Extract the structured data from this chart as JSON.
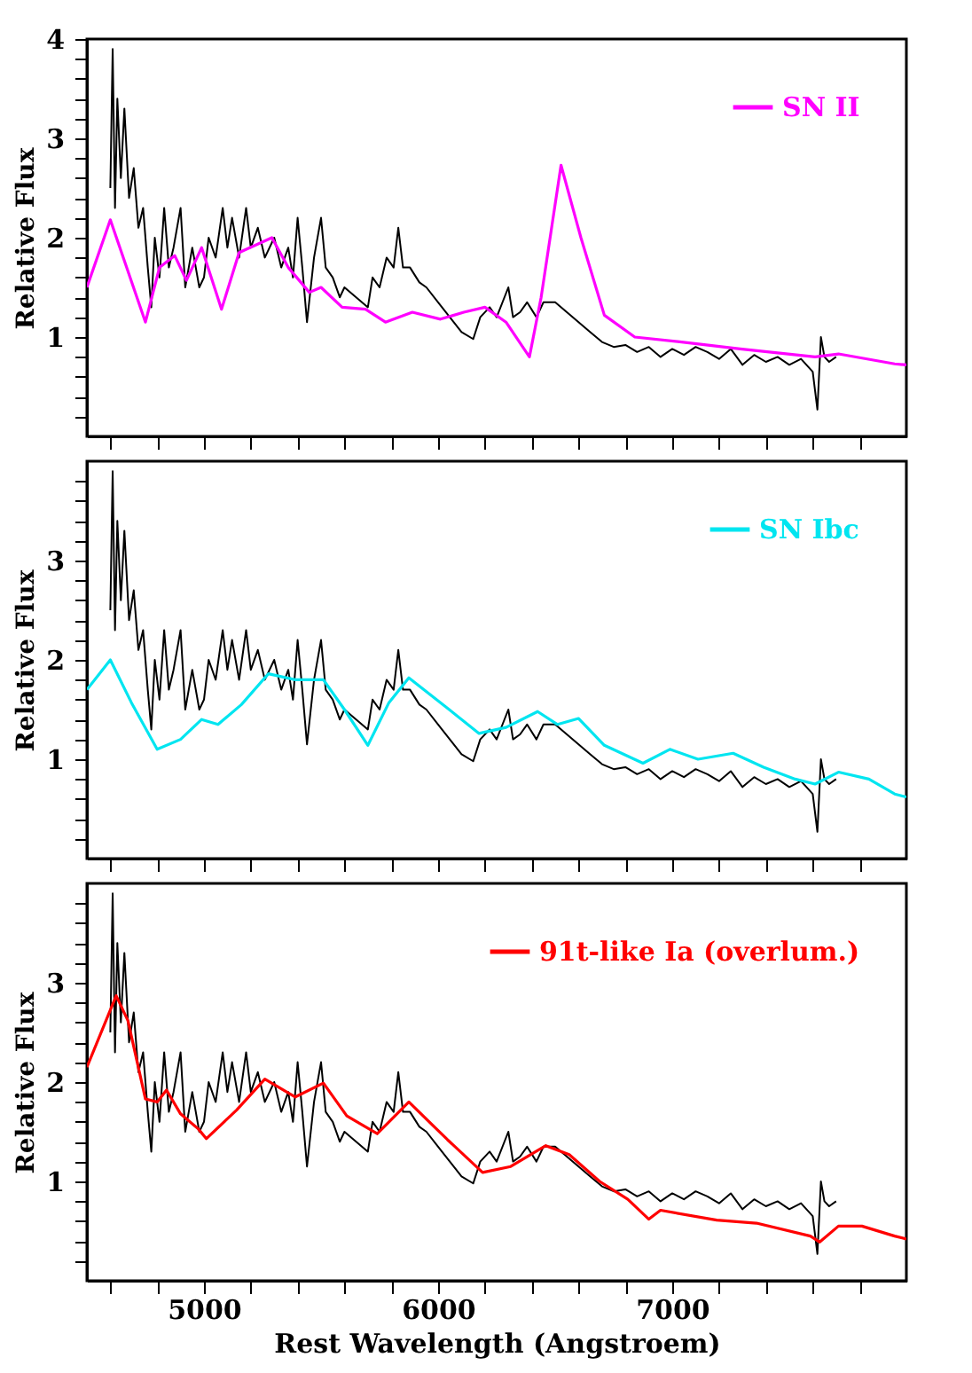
{
  "chart_data": [
    {
      "type": "line",
      "ylabel": "Relative Flux",
      "xlim": [
        4500,
        8000
      ],
      "ylim": [
        0,
        4
      ],
      "tick_labels": "y",
      "legend": "top right",
      "grid": false,
      "line_style": "solid",
      "marker": "none",
      "xticks": [
        {
          "value": 4600,
          "label": null
        },
        {
          "value": 4800,
          "label": null
        },
        5000,
        {
          "value": 5200,
          "label": null
        },
        {
          "value": 5400,
          "label": null
        },
        {
          "value": 5600,
          "label": null
        },
        {
          "value": 5800,
          "label": null
        },
        6000,
        {
          "value": 6200,
          "label": null
        },
        {
          "value": 6400,
          "label": null
        },
        {
          "value": 6600,
          "label": null
        },
        {
          "value": 6800,
          "label": null
        },
        7000,
        {
          "value": 7200,
          "label": null
        },
        {
          "value": 7400,
          "label": null
        },
        {
          "value": 7600,
          "label": null
        },
        {
          "value": 7800,
          "label": null
        }
      ],
      "yticks": [
        {
          "value": 0.2,
          "label": null
        },
        {
          "value": 0.4,
          "label": null
        },
        {
          "value": 0.6,
          "label": null
        },
        {
          "value": 0.8,
          "label": null
        },
        1,
        {
          "value": 1.2,
          "label": null
        },
        {
          "value": 1.4,
          "label": null
        },
        {
          "value": 1.6,
          "label": null
        },
        {
          "value": 1.8,
          "label": null
        },
        2,
        {
          "value": 2.2,
          "label": null
        },
        {
          "value": 2.4,
          "label": null
        },
        {
          "value": 2.6,
          "label": null
        },
        {
          "value": 2.8,
          "label": null
        },
        3,
        {
          "value": 3.2,
          "label": null
        },
        {
          "value": 3.4,
          "label": null
        },
        {
          "value": 3.6,
          "label": null
        },
        {
          "value": 3.8,
          "label": null
        },
        4
      ],
      "series": [
        {
          "color": "#000000",
          "x": [
            4600,
            4610,
            4620,
            4630,
            4645,
            4660,
            4680,
            4700,
            4720,
            4740,
            4760,
            4775,
            4790,
            4810,
            4830,
            4850,
            4870,
            4900,
            4920,
            4950,
            4980,
            5000,
            5020,
            5050,
            5080,
            5100,
            5120,
            5150,
            5180,
            5200,
            5230,
            5260,
            5300,
            5330,
            5360,
            5380,
            5400,
            5420,
            5440,
            5470,
            5500,
            5520,
            5550,
            5580,
            5600,
            5650,
            5700,
            5720,
            5750,
            5780,
            5810,
            5830,
            5850,
            5880,
            5920,
            5950,
            6000,
            6050,
            6100,
            6150,
            6180,
            6220,
            6250,
            6300,
            6320,
            6350,
            6380,
            6420,
            6450,
            6500,
            6550,
            6600,
            6650,
            6700,
            6750,
            6800,
            6850,
            6900,
            6950,
            7000,
            7050,
            7100,
            7150,
            7200,
            7250,
            7300,
            7350,
            7400,
            7450,
            7500,
            7550,
            7600,
            7620,
            7635,
            7650,
            7670,
            7700
          ],
          "values": [
            2.5,
            3.9,
            2.3,
            3.4,
            2.6,
            3.3,
            2.4,
            2.7,
            2.1,
            2.3,
            1.7,
            1.3,
            2.0,
            1.6,
            2.3,
            1.7,
            1.9,
            2.3,
            1.5,
            1.9,
            1.5,
            1.6,
            2.0,
            1.8,
            2.3,
            1.9,
            2.2,
            1.8,
            2.3,
            1.9,
            2.1,
            1.8,
            2.0,
            1.7,
            1.9,
            1.6,
            2.2,
            1.7,
            1.15,
            1.8,
            2.2,
            1.7,
            1.6,
            1.4,
            1.5,
            1.4,
            1.3,
            1.6,
            1.5,
            1.8,
            1.7,
            2.1,
            1.7,
            1.7,
            1.55,
            1.5,
            1.35,
            1.2,
            1.05,
            0.98,
            1.2,
            1.3,
            1.2,
            1.5,
            1.2,
            1.25,
            1.35,
            1.2,
            1.35,
            1.35,
            1.25,
            1.15,
            1.05,
            0.95,
            0.9,
            0.92,
            0.85,
            0.9,
            0.8,
            0.88,
            0.82,
            0.9,
            0.85,
            0.78,
            0.88,
            0.72,
            0.82,
            0.75,
            0.8,
            0.72,
            0.78,
            0.65,
            0.27,
            1.0,
            0.8,
            0.75,
            0.8
          ]
        },
        {
          "name": "SN II",
          "color": "#ff00ff",
          "x": [
            4500,
            4600,
            4750,
            4810,
            4875,
            4925,
            4990,
            5075,
            5150,
            5290,
            5360,
            5450,
            5500,
            5590,
            5690,
            5775,
            5890,
            6010,
            6110,
            6200,
            6290,
            6390,
            6440,
            6525,
            6610,
            6710,
            6840,
            7040,
            7290,
            7610,
            7710,
            7950,
            8000
          ],
          "values": [
            1.5,
            2.18,
            1.15,
            1.7,
            1.82,
            1.57,
            1.9,
            1.28,
            1.85,
            2.0,
            1.7,
            1.45,
            1.5,
            1.3,
            1.28,
            1.15,
            1.25,
            1.18,
            1.25,
            1.3,
            1.15,
            0.8,
            1.4,
            2.73,
            2.0,
            1.22,
            1.0,
            0.95,
            0.88,
            0.8,
            0.83,
            0.73,
            0.72
          ]
        }
      ]
    },
    {
      "type": "line",
      "ylabel": "Relative Flux",
      "xlim": [
        4500,
        8000
      ],
      "ylim": [
        0,
        4
      ],
      "tick_labels": "y",
      "legend": "top right",
      "grid": false,
      "line_style": "solid",
      "marker": "none",
      "xticks": [
        {
          "value": 4600,
          "label": null
        },
        {
          "value": 4800,
          "label": null
        },
        5000,
        {
          "value": 5200,
          "label": null
        },
        {
          "value": 5400,
          "label": null
        },
        {
          "value": 5600,
          "label": null
        },
        {
          "value": 5800,
          "label": null
        },
        6000,
        {
          "value": 6200,
          "label": null
        },
        {
          "value": 6400,
          "label": null
        },
        {
          "value": 6600,
          "label": null
        },
        {
          "value": 6800,
          "label": null
        },
        7000,
        {
          "value": 7200,
          "label": null
        },
        {
          "value": 7400,
          "label": null
        },
        {
          "value": 7600,
          "label": null
        },
        {
          "value": 7800,
          "label": null
        }
      ],
      "yticks": [
        {
          "value": 0.2,
          "label": null
        },
        {
          "value": 0.4,
          "label": null
        },
        {
          "value": 0.6,
          "label": null
        },
        {
          "value": 0.8,
          "label": null
        },
        1,
        {
          "value": 1.2,
          "label": null
        },
        {
          "value": 1.4,
          "label": null
        },
        {
          "value": 1.6,
          "label": null
        },
        {
          "value": 1.8,
          "label": null
        },
        2,
        {
          "value": 2.2,
          "label": null
        },
        {
          "value": 2.4,
          "label": null
        },
        {
          "value": 2.6,
          "label": null
        },
        {
          "value": 2.8,
          "label": null
        },
        3,
        {
          "value": 3.2,
          "label": null
        },
        {
          "value": 3.4,
          "label": null
        },
        {
          "value": 3.6,
          "label": null
        },
        {
          "value": 3.8,
          "label": null
        }
      ],
      "series": [
        {
          "color": "#000000",
          "x": [
            4600,
            4610,
            4620,
            4630,
            4645,
            4660,
            4680,
            4700,
            4720,
            4740,
            4760,
            4775,
            4790,
            4810,
            4830,
            4850,
            4870,
            4900,
            4920,
            4950,
            4980,
            5000,
            5020,
            5050,
            5080,
            5100,
            5120,
            5150,
            5180,
            5200,
            5230,
            5260,
            5300,
            5330,
            5360,
            5380,
            5400,
            5420,
            5440,
            5470,
            5500,
            5520,
            5550,
            5580,
            5600,
            5650,
            5700,
            5720,
            5750,
            5780,
            5810,
            5830,
            5850,
            5880,
            5920,
            5950,
            6000,
            6050,
            6100,
            6150,
            6180,
            6220,
            6250,
            6300,
            6320,
            6350,
            6380,
            6420,
            6450,
            6500,
            6550,
            6600,
            6650,
            6700,
            6750,
            6800,
            6850,
            6900,
            6950,
            7000,
            7050,
            7100,
            7150,
            7200,
            7250,
            7300,
            7350,
            7400,
            7450,
            7500,
            7550,
            7600,
            7620,
            7635,
            7650,
            7670,
            7700
          ],
          "values": [
            2.5,
            3.9,
            2.3,
            3.4,
            2.6,
            3.3,
            2.4,
            2.7,
            2.1,
            2.3,
            1.7,
            1.3,
            2.0,
            1.6,
            2.3,
            1.7,
            1.9,
            2.3,
            1.5,
            1.9,
            1.5,
            1.6,
            2.0,
            1.8,
            2.3,
            1.9,
            2.2,
            1.8,
            2.3,
            1.9,
            2.1,
            1.8,
            2.0,
            1.7,
            1.9,
            1.6,
            2.2,
            1.7,
            1.15,
            1.8,
            2.2,
            1.7,
            1.6,
            1.4,
            1.5,
            1.4,
            1.3,
            1.6,
            1.5,
            1.8,
            1.7,
            2.1,
            1.7,
            1.7,
            1.55,
            1.5,
            1.35,
            1.2,
            1.05,
            0.98,
            1.2,
            1.3,
            1.2,
            1.5,
            1.2,
            1.25,
            1.35,
            1.2,
            1.35,
            1.35,
            1.25,
            1.15,
            1.05,
            0.95,
            0.9,
            0.92,
            0.85,
            0.9,
            0.8,
            0.88,
            0.82,
            0.9,
            0.85,
            0.78,
            0.88,
            0.72,
            0.82,
            0.75,
            0.8,
            0.72,
            0.78,
            0.65,
            0.27,
            1.0,
            0.8,
            0.75,
            0.8
          ]
        },
        {
          "name": "SN Ibc",
          "color": "#00e5f0",
          "x": [
            4500,
            4600,
            4690,
            4800,
            4900,
            4990,
            5060,
            5160,
            5275,
            5390,
            5510,
            5600,
            5700,
            5790,
            5875,
            6010,
            6175,
            6290,
            6425,
            6510,
            6600,
            6710,
            6875,
            6990,
            7110,
            7260,
            7390,
            7525,
            7610,
            7710,
            7840,
            7950,
            8000
          ],
          "values": [
            1.7,
            2.0,
            1.57,
            1.1,
            1.2,
            1.4,
            1.35,
            1.55,
            1.86,
            1.8,
            1.8,
            1.5,
            1.14,
            1.57,
            1.82,
            1.57,
            1.26,
            1.32,
            1.48,
            1.35,
            1.41,
            1.14,
            0.96,
            1.1,
            1.0,
            1.06,
            0.92,
            0.8,
            0.75,
            0.87,
            0.8,
            0.65,
            0.62
          ]
        }
      ]
    },
    {
      "type": "line",
      "xlabel": "Rest Wavelength (Angstroem)",
      "ylabel": "Relative Flux",
      "xlim": [
        4500,
        8000
      ],
      "ylim": [
        0,
        4
      ],
      "legend": "top right",
      "grid": false,
      "line_style": "solid",
      "marker": "none",
      "xticks": [
        {
          "value": 4600,
          "label": null
        },
        {
          "value": 4800,
          "label": null
        },
        5000,
        {
          "value": 5200,
          "label": null
        },
        {
          "value": 5400,
          "label": null
        },
        {
          "value": 5600,
          "label": null
        },
        {
          "value": 5800,
          "label": null
        },
        6000,
        {
          "value": 6200,
          "label": null
        },
        {
          "value": 6400,
          "label": null
        },
        {
          "value": 6600,
          "label": null
        },
        {
          "value": 6800,
          "label": null
        },
        7000,
        {
          "value": 7200,
          "label": null
        },
        {
          "value": 7400,
          "label": null
        },
        {
          "value": 7600,
          "label": null
        },
        {
          "value": 7800,
          "label": null
        }
      ],
      "yticks": [
        {
          "value": 0.2,
          "label": null
        },
        {
          "value": 0.4,
          "label": null
        },
        {
          "value": 0.6,
          "label": null
        },
        {
          "value": 0.8,
          "label": null
        },
        1,
        {
          "value": 1.2,
          "label": null
        },
        {
          "value": 1.4,
          "label": null
        },
        {
          "value": 1.6,
          "label": null
        },
        {
          "value": 1.8,
          "label": null
        },
        2,
        {
          "value": 2.2,
          "label": null
        },
        {
          "value": 2.4,
          "label": null
        },
        {
          "value": 2.6,
          "label": null
        },
        {
          "value": 2.8,
          "label": null
        },
        3,
        {
          "value": 3.2,
          "label": null
        },
        {
          "value": 3.4,
          "label": null
        },
        {
          "value": 3.6,
          "label": null
        },
        {
          "value": 3.8,
          "label": null
        }
      ],
      "series": [
        {
          "color": "#000000",
          "x": [
            4600,
            4610,
            4620,
            4630,
            4645,
            4660,
            4680,
            4700,
            4720,
            4740,
            4760,
            4775,
            4790,
            4810,
            4830,
            4850,
            4870,
            4900,
            4920,
            4950,
            4980,
            5000,
            5020,
            5050,
            5080,
            5100,
            5120,
            5150,
            5180,
            5200,
            5230,
            5260,
            5300,
            5330,
            5360,
            5380,
            5400,
            5420,
            5440,
            5470,
            5500,
            5520,
            5550,
            5580,
            5600,
            5650,
            5700,
            5720,
            5750,
            5780,
            5810,
            5830,
            5850,
            5880,
            5920,
            5950,
            6000,
            6050,
            6100,
            6150,
            6180,
            6220,
            6250,
            6300,
            6320,
            6350,
            6380,
            6420,
            6450,
            6500,
            6550,
            6600,
            6650,
            6700,
            6750,
            6800,
            6850,
            6900,
            6950,
            7000,
            7050,
            7100,
            7150,
            7200,
            7250,
            7300,
            7350,
            7400,
            7450,
            7500,
            7550,
            7600,
            7620,
            7635,
            7650,
            7670,
            7700
          ],
          "values": [
            2.5,
            3.9,
            2.3,
            3.4,
            2.6,
            3.3,
            2.4,
            2.7,
            2.1,
            2.3,
            1.7,
            1.3,
            2.0,
            1.6,
            2.3,
            1.7,
            1.9,
            2.3,
            1.5,
            1.9,
            1.5,
            1.6,
            2.0,
            1.8,
            2.3,
            1.9,
            2.2,
            1.8,
            2.3,
            1.9,
            2.1,
            1.8,
            2.0,
            1.7,
            1.9,
            1.6,
            2.2,
            1.7,
            1.15,
            1.8,
            2.2,
            1.7,
            1.6,
            1.4,
            1.5,
            1.4,
            1.3,
            1.6,
            1.5,
            1.8,
            1.7,
            2.1,
            1.7,
            1.7,
            1.55,
            1.5,
            1.35,
            1.2,
            1.05,
            0.98,
            1.2,
            1.3,
            1.2,
            1.5,
            1.2,
            1.25,
            1.35,
            1.2,
            1.35,
            1.35,
            1.25,
            1.15,
            1.05,
            0.95,
            0.9,
            0.92,
            0.85,
            0.9,
            0.8,
            0.88,
            0.82,
            0.9,
            0.85,
            0.78,
            0.88,
            0.72,
            0.82,
            0.75,
            0.8,
            0.72,
            0.78,
            0.65,
            0.27,
            1.0,
            0.8,
            0.75,
            0.8
          ]
        },
        {
          "name": "91t-like Ia (overlum.)",
          "color": "#ff0000",
          "x": [
            4500,
            4625,
            4675,
            4750,
            4800,
            4840,
            4900,
            4975,
            5010,
            5140,
            5260,
            5390,
            5510,
            5610,
            5740,
            5875,
            6040,
            6190,
            6310,
            6460,
            6560,
            6690,
            6810,
            6900,
            6950,
            7190,
            7360,
            7590,
            7630,
            7710,
            7810,
            7950,
            8000
          ],
          "values": [
            2.15,
            2.87,
            2.62,
            1.83,
            1.8,
            1.92,
            1.68,
            1.53,
            1.43,
            1.72,
            2.03,
            1.85,
            1.99,
            1.66,
            1.48,
            1.8,
            1.42,
            1.09,
            1.15,
            1.36,
            1.27,
            1.0,
            0.82,
            0.62,
            0.71,
            0.61,
            0.58,
            0.45,
            0.39,
            0.55,
            0.55,
            0.45,
            0.42
          ]
        }
      ]
    }
  ]
}
